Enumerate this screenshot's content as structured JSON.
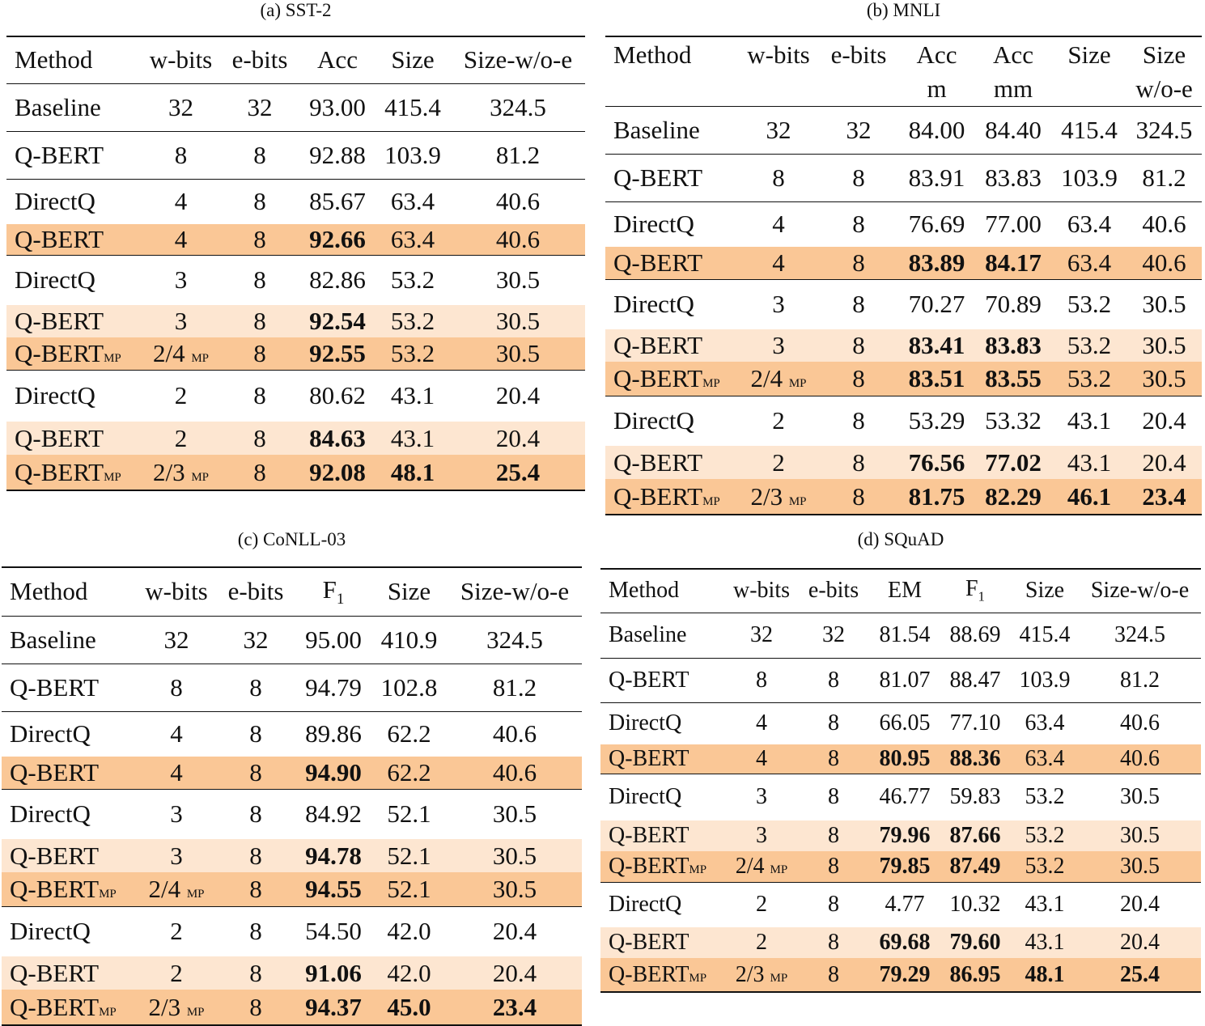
{
  "panels": {
    "a": {
      "caption": "(a) SST-2",
      "headers": [
        "Method",
        "w-bits",
        "e-bits",
        "Acc",
        "Size",
        "Size-w/o-e"
      ],
      "rows": [
        [
          "Baseline",
          "32",
          "32",
          "93.00",
          "415.4",
          "324.5"
        ],
        [
          "Q-BERT",
          "8",
          "8",
          "92.88",
          "103.9",
          "81.2"
        ],
        [
          "DirectQ",
          "4",
          "8",
          "85.67",
          "63.4",
          "40.6"
        ],
        [
          "Q-BERT",
          "4",
          "8",
          "92.66",
          "63.4",
          "40.6"
        ],
        [
          "DirectQ",
          "3",
          "8",
          "82.86",
          "53.2",
          "30.5"
        ],
        [
          "Q-BERT",
          "3",
          "8",
          "92.54",
          "53.2",
          "30.5"
        ],
        [
          "Q-BERT",
          "2/4",
          "8",
          "92.55",
          "53.2",
          "30.5"
        ],
        [
          "DirectQ",
          "2",
          "8",
          "80.62",
          "43.1",
          "20.4"
        ],
        [
          "Q-BERT",
          "2",
          "8",
          "84.63",
          "43.1",
          "20.4"
        ],
        [
          "Q-BERT",
          "2/3",
          "8",
          "92.08",
          "48.1",
          "25.4"
        ]
      ]
    },
    "b": {
      "caption": "(b) MNLI",
      "headers": [
        "Method",
        "w-bits",
        "e-bits",
        "Acc",
        "Acc",
        "Size",
        "Size"
      ],
      "headers2": [
        "",
        "",
        "",
        "m",
        "mm",
        "",
        "w/o-e"
      ],
      "rows": [
        [
          "Baseline",
          "32",
          "32",
          "84.00",
          "84.40",
          "415.4",
          "324.5"
        ],
        [
          "Q-BERT",
          "8",
          "8",
          "83.91",
          "83.83",
          "103.9",
          "81.2"
        ],
        [
          "DirectQ",
          "4",
          "8",
          "76.69",
          "77.00",
          "63.4",
          "40.6"
        ],
        [
          "Q-BERT",
          "4",
          "8",
          "83.89",
          "84.17",
          "63.4",
          "40.6"
        ],
        [
          "DirectQ",
          "3",
          "8",
          "70.27",
          "70.89",
          "53.2",
          "30.5"
        ],
        [
          "Q-BERT",
          "3",
          "8",
          "83.41",
          "83.83",
          "53.2",
          "30.5"
        ],
        [
          "Q-BERT",
          "2/4",
          "8",
          "83.51",
          "83.55",
          "53.2",
          "30.5"
        ],
        [
          "DirectQ",
          "2",
          "8",
          "53.29",
          "53.32",
          "43.1",
          "20.4"
        ],
        [
          "Q-BERT",
          "2",
          "8",
          "76.56",
          "77.02",
          "43.1",
          "20.4"
        ],
        [
          "Q-BERT",
          "2/3",
          "8",
          "81.75",
          "82.29",
          "46.1",
          "23.4"
        ]
      ]
    },
    "c": {
      "caption": "(c) CoNLL-03",
      "headers": [
        "Method",
        "w-bits",
        "e-bits",
        "F",
        "Size",
        "Size-w/o-e"
      ],
      "sub": "1",
      "rows": [
        [
          "Baseline",
          "32",
          "32",
          "95.00",
          "410.9",
          "324.5"
        ],
        [
          "Q-BERT",
          "8",
          "8",
          "94.79",
          "102.8",
          "81.2"
        ],
        [
          "DirectQ",
          "4",
          "8",
          "89.86",
          "62.2",
          "40.6"
        ],
        [
          "Q-BERT",
          "4",
          "8",
          "94.90",
          "62.2",
          "40.6"
        ],
        [
          "DirectQ",
          "3",
          "8",
          "84.92",
          "52.1",
          "30.5"
        ],
        [
          "Q-BERT",
          "3",
          "8",
          "94.78",
          "52.1",
          "30.5"
        ],
        [
          "Q-BERT",
          "2/4",
          "8",
          "94.55",
          "52.1",
          "30.5"
        ],
        [
          "DirectQ",
          "2",
          "8",
          "54.50",
          "42.0",
          "20.4"
        ],
        [
          "Q-BERT",
          "2",
          "8",
          "91.06",
          "42.0",
          "20.4"
        ],
        [
          "Q-BERT",
          "2/3",
          "8",
          "94.37",
          "45.0",
          "23.4"
        ]
      ]
    },
    "d": {
      "caption": "(d) SQuAD",
      "headers": [
        "Method",
        "w-bits",
        "e-bits",
        "EM",
        "F",
        "Size",
        "Size-w/o-e"
      ],
      "sub": "1",
      "rows": [
        [
          "Baseline",
          "32",
          "32",
          "81.54",
          "88.69",
          "415.4",
          "324.5"
        ],
        [
          "Q-BERT",
          "8",
          "8",
          "81.07",
          "88.47",
          "103.9",
          "81.2"
        ],
        [
          "DirectQ",
          "4",
          "8",
          "66.05",
          "77.10",
          "63.4",
          "40.6"
        ],
        [
          "Q-BERT",
          "4",
          "8",
          "80.95",
          "88.36",
          "63.4",
          "40.6"
        ],
        [
          "DirectQ",
          "3",
          "8",
          "46.77",
          "59.83",
          "53.2",
          "30.5"
        ],
        [
          "Q-BERT",
          "3",
          "8",
          "79.96",
          "87.66",
          "53.2",
          "30.5"
        ],
        [
          "Q-BERT",
          "2/4",
          "8",
          "79.85",
          "87.49",
          "53.2",
          "30.5"
        ],
        [
          "DirectQ",
          "2",
          "8",
          "4.77",
          "10.32",
          "43.1",
          "20.4"
        ],
        [
          "Q-BERT",
          "2",
          "8",
          "69.68",
          "79.60",
          "43.1",
          "20.4"
        ],
        [
          "Q-BERT",
          "2/3",
          "8",
          "79.29",
          "86.95",
          "48.1",
          "25.4"
        ]
      ]
    },
    "mp": "MP"
  }
}
